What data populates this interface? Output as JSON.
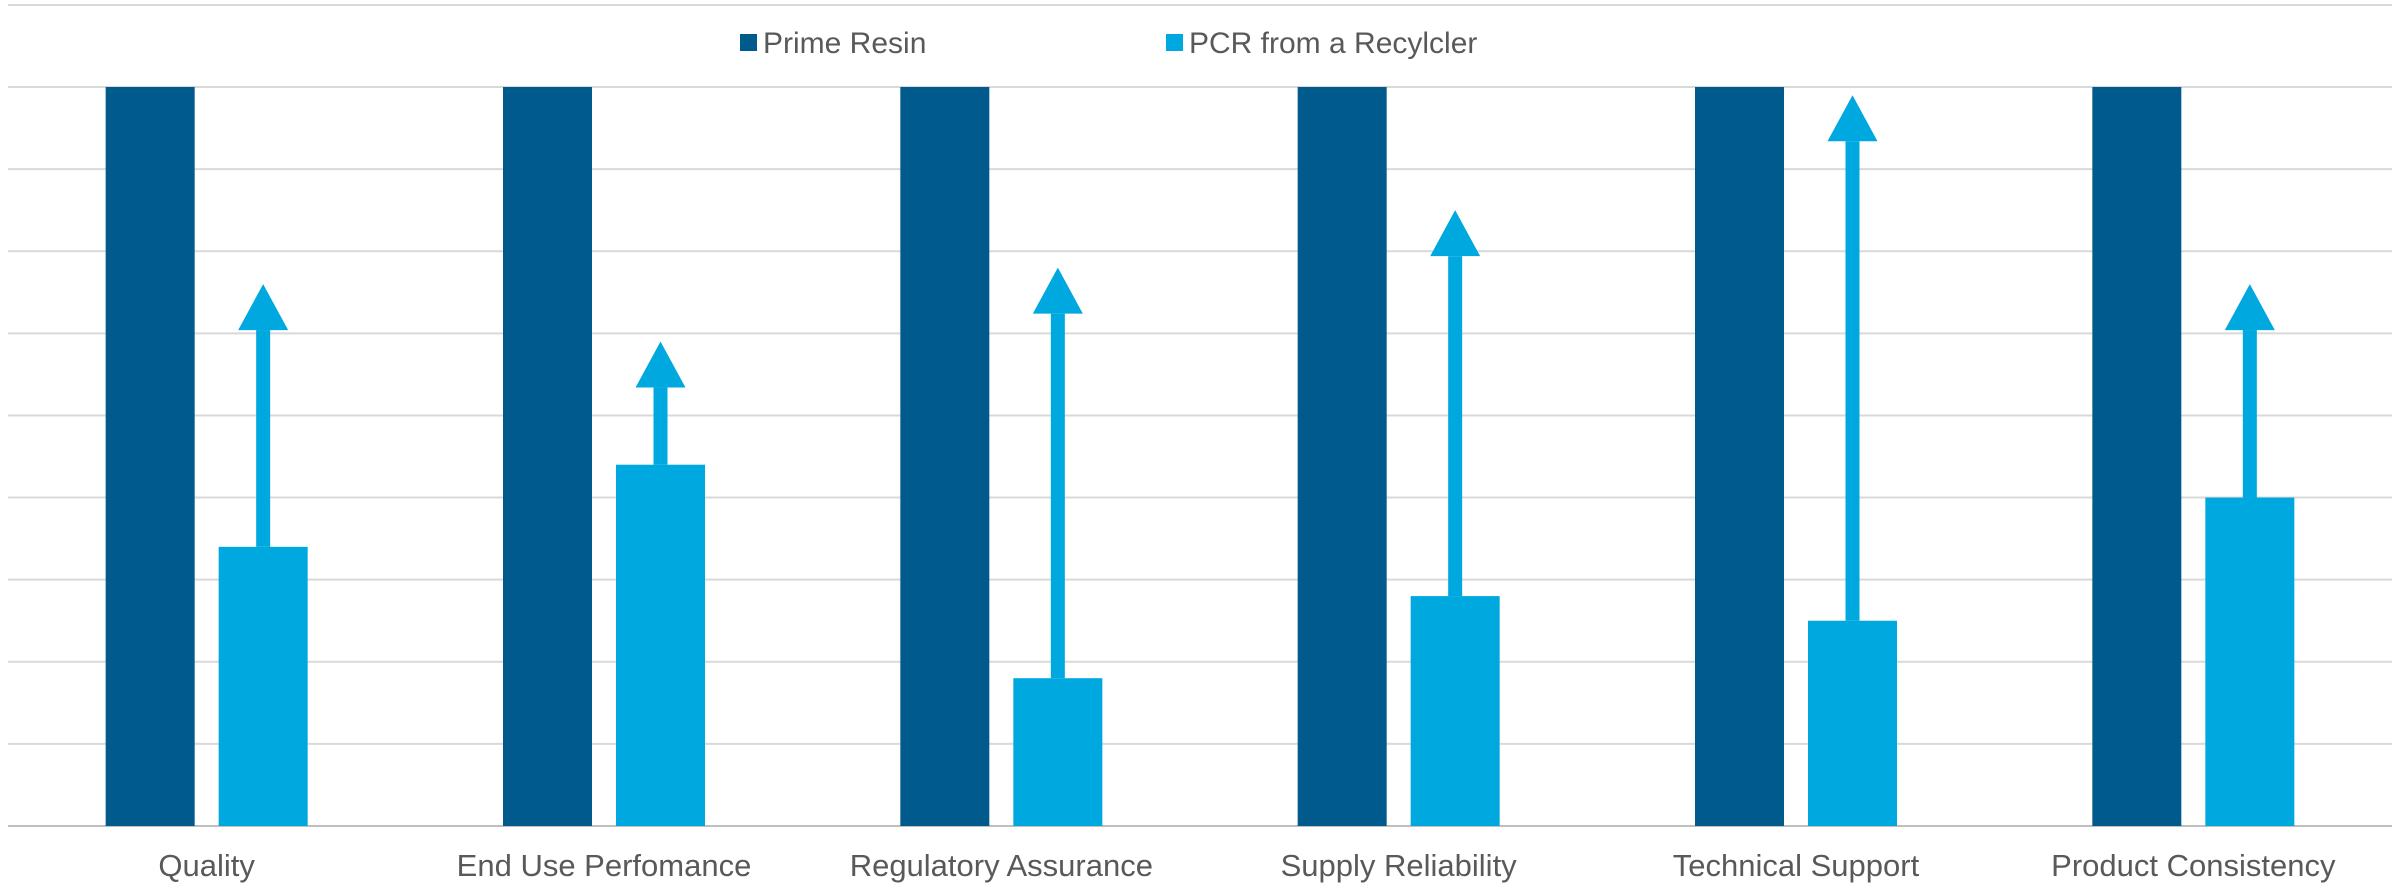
{
  "chart_data": {
    "type": "bar",
    "title": "",
    "xlabel": "",
    "ylabel": "",
    "ylim": [
      0,
      9
    ],
    "grid": true,
    "legend_placement": "top-center",
    "categories": [
      "Quality",
      "End Use Perfomance",
      "Regulatory Assurance",
      "Supply Reliability",
      "Technical Support",
      "Product Consistency"
    ],
    "series": [
      {
        "name": "Prime Resin",
        "color": "#005A8C",
        "values": [
          9,
          9,
          9,
          9,
          9,
          9
        ]
      },
      {
        "name": "PCR from a Recylcler",
        "color": "#00A8E0",
        "values": [
          3.4,
          4.4,
          1.8,
          2.8,
          2.5,
          4.0
        ]
      }
    ],
    "arrows": {
      "series": "PCR from a Recylcler",
      "color": "#00A8E0",
      "targets": [
        6.6,
        5.9,
        6.8,
        7.5,
        8.9,
        6.6
      ]
    }
  }
}
